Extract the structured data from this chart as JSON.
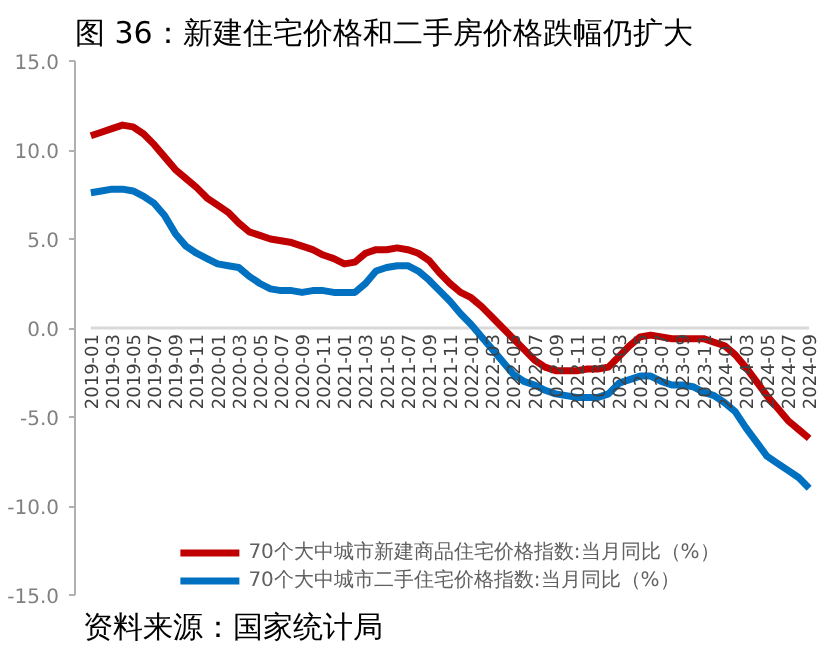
{
  "chart_data": {
    "type": "line",
    "title": "图 36：新建住宅价格和二手房价格跌幅仍扩大",
    "categories": [
      "2019-01",
      null,
      "2019-03",
      null,
      "2019-05",
      null,
      "2019-07",
      null,
      "2019-09",
      null,
      "2019-11",
      null,
      "2020-01",
      null,
      "2020-03",
      null,
      "2020-05",
      null,
      "2020-07",
      null,
      "2020-09",
      null,
      "2020-11",
      null,
      "2021-01",
      null,
      "2021-03",
      null,
      "2021-05",
      null,
      "2021-07",
      null,
      "2021-09",
      null,
      "2021-11",
      null,
      "2022-01",
      null,
      "2022-03",
      null,
      "2022-05",
      null,
      "2022-07",
      null,
      "2022-09",
      null,
      "2022-11",
      null,
      "2023-01",
      null,
      "2023-03",
      null,
      "2023-05",
      null,
      "2023-07",
      null,
      "2023-09",
      null,
      "2023-11",
      null,
      "2024-01",
      null,
      "2024-03",
      null,
      "2024-05",
      null,
      "2024-07",
      null,
      "2024-09"
    ],
    "series": [
      {
        "name": "70个大中城市新建商品住宅价格指数:当月同比（%）",
        "color": "#c00000",
        "values": [
          10.8,
          11.0,
          11.2,
          11.4,
          11.3,
          10.9,
          10.3,
          9.6,
          8.9,
          8.4,
          7.9,
          7.3,
          6.9,
          6.5,
          5.9,
          5.4,
          5.2,
          5.0,
          4.9,
          4.8,
          4.6,
          4.4,
          4.1,
          3.9,
          3.6,
          3.7,
          4.2,
          4.4,
          4.4,
          4.5,
          4.4,
          4.2,
          3.8,
          3.1,
          2.5,
          2.0,
          1.7,
          1.2,
          0.6,
          0.0,
          -0.6,
          -1.2,
          -1.8,
          -2.2,
          -2.4,
          -2.4,
          -2.4,
          -2.3,
          -2.3,
          -2.2,
          -1.6,
          -1.0,
          -0.5,
          -0.4,
          -0.5,
          -0.6,
          -0.6,
          -0.6,
          -0.6,
          -0.8,
          -1.0,
          -1.5,
          -2.2,
          -3.0,
          -3.8,
          -4.5,
          -5.2,
          -5.7,
          -6.2
        ]
      },
      {
        "name": "70个大中城市二手住宅价格指数:当月同比（%）",
        "color": "#0070c0",
        "values": [
          7.6,
          7.7,
          7.8,
          7.8,
          7.7,
          7.4,
          7.0,
          6.3,
          5.3,
          4.6,
          4.2,
          3.9,
          3.6,
          3.5,
          3.4,
          2.9,
          2.5,
          2.2,
          2.1,
          2.1,
          2.0,
          2.1,
          2.1,
          2.0,
          2.0,
          2.0,
          2.5,
          3.2,
          3.4,
          3.5,
          3.5,
          3.2,
          2.7,
          2.1,
          1.5,
          0.8,
          0.2,
          -0.5,
          -1.2,
          -1.9,
          -2.6,
          -3.0,
          -3.2,
          -3.5,
          -3.7,
          -3.8,
          -3.9,
          -3.9,
          -3.9,
          -3.7,
          -3.1,
          -2.9,
          -2.7,
          -2.7,
          -3.0,
          -3.2,
          -3.2,
          -3.3,
          -3.6,
          -3.8,
          -4.2,
          -4.7,
          -5.6,
          -6.4,
          -7.2,
          -7.6,
          -8.0,
          -8.4,
          -9.0
        ]
      }
    ],
    "ylim": [
      -15,
      15
    ],
    "yticks": [
      {
        "value": -15,
        "label": "-15.0"
      },
      {
        "value": -10,
        "label": "-10.0"
      },
      {
        "value": -5,
        "label": "-5.0"
      },
      {
        "value": 0,
        "label": "0.0"
      },
      {
        "value": 5,
        "label": "5.0"
      },
      {
        "value": 10,
        "label": "10.0"
      },
      {
        "value": 15,
        "label": "15.0"
      }
    ],
    "grid": false,
    "legend": "bottom",
    "line_style": "solid",
    "marker": "none",
    "annotations": [
      "资料来源：国家统计局"
    ]
  }
}
